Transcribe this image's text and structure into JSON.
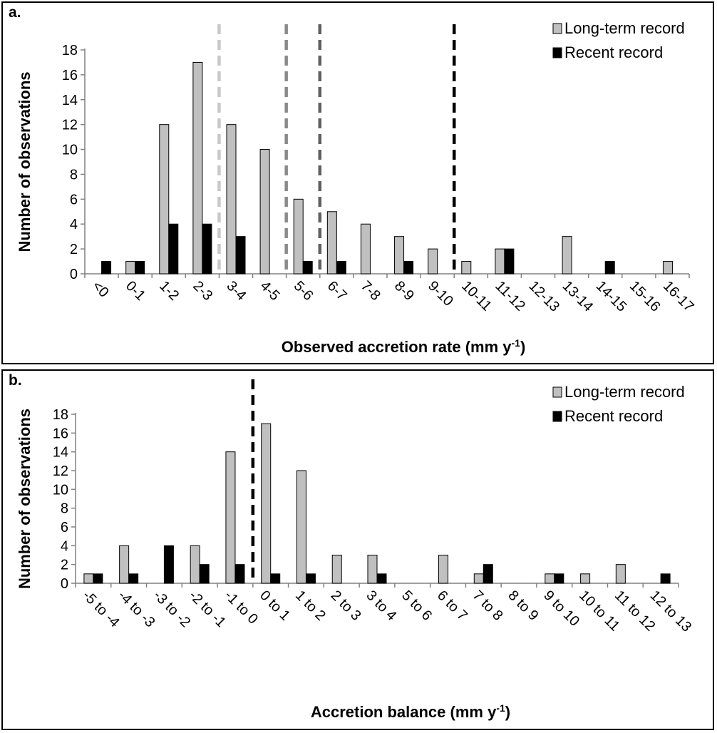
{
  "chart_data": [
    {
      "type": "bar",
      "panel_label": "a.",
      "title": "",
      "xlabel": "Observed accretion rate (mm y",
      "xlabel_sup": "-1",
      "xlabel_end": ")",
      "ylabel": "Number of observations",
      "ylim": [
        0,
        18
      ],
      "yticks": [
        0,
        2,
        4,
        6,
        8,
        10,
        12,
        14,
        16,
        18
      ],
      "categories": [
        "<0",
        "0-1",
        "1-2",
        "2-3",
        "3-4",
        "4-5",
        "5-6",
        "6-7",
        "7-8",
        "8-9",
        "9-10",
        "10-11",
        "11-12",
        "12-13",
        "13-14",
        "14-15",
        "15-16",
        "16-17"
      ],
      "series": [
        {
          "name": "Long-term record",
          "color": "#c0c0c0",
          "values": [
            0,
            1,
            12,
            17,
            12,
            10,
            6,
            5,
            4,
            3,
            2,
            1,
            2,
            0,
            3,
            0,
            0,
            1
          ]
        },
        {
          "name": "Recent record",
          "color": "#000000",
          "values": [
            1,
            1,
            4,
            4,
            3,
            0,
            1,
            1,
            0,
            1,
            0,
            0,
            2,
            0,
            0,
            1,
            0,
            0
          ]
        }
      ],
      "reference_lines": [
        {
          "x": 4.0,
          "color": "#c8c8c8"
        },
        {
          "x": 6.0,
          "color": "#8a8a8a"
        },
        {
          "x": 7.0,
          "color": "#606060"
        },
        {
          "x": 11.0,
          "color": "#000000"
        }
      ],
      "legend_position": "top-right",
      "grid": false
    },
    {
      "type": "bar",
      "panel_label": "b.",
      "title": "",
      "xlabel": "Accretion balance (mm y",
      "xlabel_sup": "-1",
      "xlabel_end": ")",
      "ylabel": "Number of observations",
      "ylim": [
        0,
        18
      ],
      "yticks": [
        0,
        2,
        4,
        6,
        8,
        10,
        12,
        14,
        16,
        18
      ],
      "categories": [
        "-5 to -4",
        "-4 to -3",
        "-3 to -2",
        "-2 to -1",
        "-1 to 0",
        "0 to 1",
        "1 to 2",
        "2 to 3",
        "3 to 4",
        "5 to 6",
        "6 to 7",
        "7 to 8",
        "8 to 9",
        "9 to 10",
        "10 to 11",
        "11 to 12",
        "12 to 13"
      ],
      "series": [
        {
          "name": "Long-term record",
          "color": "#c0c0c0",
          "values": [
            1,
            4,
            0,
            4,
            14,
            17,
            12,
            3,
            3,
            0,
            3,
            1,
            0,
            1,
            1,
            2,
            0
          ]
        },
        {
          "name": "Recent record",
          "color": "#000000",
          "values": [
            1,
            1,
            4,
            2,
            2,
            1,
            1,
            0,
            1,
            0,
            0,
            2,
            0,
            1,
            0,
            0,
            1
          ]
        }
      ],
      "reference_lines": [
        {
          "x": 5.0,
          "color": "#000000"
        }
      ],
      "legend_position": "top-right",
      "grid": false
    }
  ]
}
